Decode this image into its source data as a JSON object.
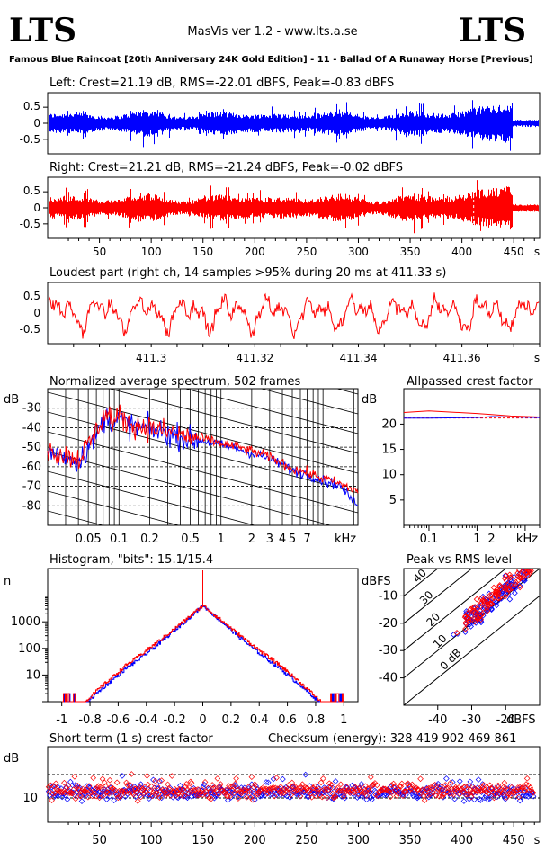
{
  "header": {
    "logo_left": "LTS",
    "logo_right": "LTS",
    "app_title": "MasVis ver 1.2 - www.lts.a.se",
    "track_title": "Famous Blue Raincoat [20th Anniversary 24K Gold Edition] - 11 - Ballad Of A Runaway Horse [Previous]"
  },
  "colors": {
    "left": "#0000ff",
    "right": "#ff0000",
    "grid": "#000000"
  },
  "chart_data": [
    {
      "type": "line",
      "name": "left-waveform",
      "title": "Left: Crest=21.19 dB, RMS=-22.01 dBFS, Peak=-0.83 dBFS",
      "ylim": [
        -1,
        1
      ],
      "yticks": [
        "0.5",
        "0",
        "-0.5"
      ],
      "xlim": [
        0,
        475
      ],
      "series": [
        {
          "color": "#0000ff"
        }
      ]
    },
    {
      "type": "line",
      "name": "right-waveform",
      "title": "Right: Crest=21.21 dB, RMS=-21.24 dBFS, Peak=-0.02 dBFS",
      "ylim": [
        -1,
        1
      ],
      "yticks": [
        "0.5",
        "0",
        "-0.5"
      ],
      "xlim": [
        0,
        475
      ],
      "xticks": [
        "50",
        "100",
        "150",
        "200",
        "250",
        "300",
        "350",
        "400",
        "450"
      ],
      "xunit": "s",
      "series": [
        {
          "color": "#ff0000"
        }
      ]
    },
    {
      "type": "line",
      "name": "loudest-part",
      "title": "Loudest part (right ch, 14 samples >95% during 20 ms at 411.33 s)",
      "ylim": [
        -1,
        1
      ],
      "yticks": [
        "0.5",
        "0",
        "-0.5"
      ],
      "xlim": [
        411.28,
        411.375
      ],
      "xticks": [
        "411.3",
        "411.32",
        "411.34",
        "411.36"
      ],
      "xunit": "s",
      "series": [
        {
          "color": "#ff0000"
        }
      ]
    },
    {
      "type": "line",
      "name": "average-spectrum",
      "title": "Normalized average spectrum, 502 frames",
      "yunit": "dB",
      "ylim": [
        -90,
        -20
      ],
      "yticks": [
        "-30",
        "-40",
        "-50",
        "-60",
        "-70",
        "-80"
      ],
      "xscale": "log",
      "xlim": [
        0.02,
        22
      ],
      "xticks": [
        "0.05",
        "0.1",
        "0.2",
        "0.5",
        "1",
        "2",
        "3",
        "4",
        "5",
        "7"
      ],
      "xunit": "kHz",
      "series": [
        {
          "color": "#0000ff",
          "x": [
            0.02,
            0.03,
            0.04,
            0.05,
            0.06,
            0.07,
            0.08,
            0.09,
            0.1,
            0.12,
            0.15,
            0.2,
            0.3,
            0.5,
            0.7,
            1,
            1.5,
            2,
            3,
            4,
            5,
            7,
            10,
            15,
            20
          ],
          "y": [
            -52,
            -55,
            -57,
            -50,
            -44,
            -36,
            -34,
            -38,
            -35,
            -38,
            -40,
            -41,
            -43,
            -46,
            -47,
            -49,
            -51,
            -53,
            -56,
            -59,
            -62,
            -64,
            -67,
            -70,
            -78
          ]
        },
        {
          "color": "#ff0000",
          "x": [
            0.02,
            0.03,
            0.04,
            0.05,
            0.06,
            0.07,
            0.08,
            0.09,
            0.1,
            0.12,
            0.15,
            0.2,
            0.3,
            0.5,
            0.7,
            1,
            1.5,
            2,
            3,
            4,
            5,
            7,
            10,
            15,
            20
          ],
          "y": [
            -51,
            -54,
            -56,
            -49,
            -42,
            -34,
            -33,
            -37,
            -34,
            -37,
            -39,
            -40,
            -42,
            -45,
            -46,
            -48,
            -50,
            -52,
            -55,
            -58,
            -61,
            -63,
            -66,
            -69,
            -72
          ]
        }
      ]
    },
    {
      "type": "line",
      "name": "allpassed-crest",
      "title": "Allpassed crest factor",
      "yunit": "dB",
      "ylim": [
        0,
        27
      ],
      "yticks": [
        "20",
        "15",
        "10",
        "5"
      ],
      "xscale": "log",
      "xlim": [
        0.03,
        20
      ],
      "xticks": [
        "0.1",
        "1",
        "2",
        "kHz"
      ],
      "series": [
        {
          "color": "#0000ff",
          "x": [
            0.03,
            0.1,
            1,
            2,
            5,
            20
          ],
          "y": [
            21.2,
            21.2,
            21.3,
            21.5,
            21.4,
            21.3
          ]
        },
        {
          "color": "#ff0000",
          "x": [
            0.03,
            0.1,
            1,
            2,
            5,
            20
          ],
          "y": [
            22.3,
            22.6,
            22.1,
            21.9,
            21.6,
            21.4
          ]
        }
      ]
    },
    {
      "type": "line",
      "name": "histogram",
      "title": "Histogram, \"bits\": 15.1/15.4",
      "yunit": "n",
      "yscale": "log",
      "yticks": [
        "1000",
        "100",
        "10"
      ],
      "xlim": [
        -1.1,
        1.1
      ],
      "xticks": [
        "-1",
        "-0.8",
        "-0.6",
        "-0.4",
        "-0.2",
        "0",
        "0.2",
        "0.4",
        "0.6",
        "0.8",
        "1"
      ]
    },
    {
      "type": "scatter",
      "name": "peak-vs-rms",
      "title": "Peak vs RMS level",
      "yunit": "dBFS",
      "xunit": "dBFS",
      "ylim": [
        -50,
        0
      ],
      "xlim": [
        -50,
        -10
      ],
      "yticks": [
        "-10",
        "-20",
        "-30",
        "-40"
      ],
      "xticks": [
        "-40",
        "-30",
        "-20"
      ],
      "diagonal_labels": [
        "40",
        "30",
        "20",
        "10",
        "0 dB"
      ]
    },
    {
      "type": "scatter",
      "name": "short-term-crest",
      "title": "Short term (1 s) crest factor",
      "yunit": "dB",
      "yticks": [
        "10"
      ],
      "xlim": [
        0,
        475
      ],
      "xticks": [
        "50",
        "100",
        "150",
        "200",
        "250",
        "300",
        "350",
        "400",
        "450"
      ],
      "xunit": "s"
    }
  ],
  "checksum": "Checksum (energy):   328 419 902 469 861"
}
